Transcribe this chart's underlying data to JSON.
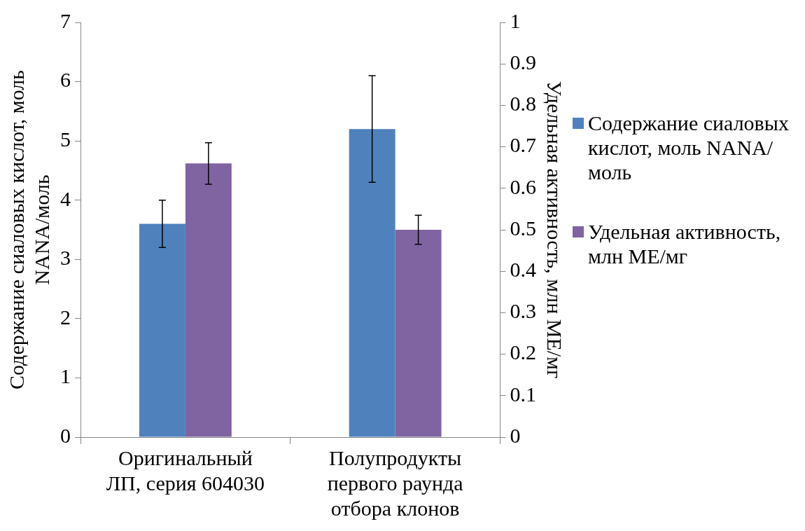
{
  "chart_data": {
    "type": "bar",
    "categories": [
      "Оригинальный ЛП, серия 604030",
      "Полупродукты первого раунда отбора клонов"
    ],
    "ylabel": "Содержание сиаловых кислот, моль NANA/моль",
    "y2label": "Удельная активность, млн МЕ/мг",
    "ylim": [
      0,
      7
    ],
    "yticks": [
      0,
      1,
      2,
      3,
      4,
      5,
      6,
      7
    ],
    "y2lim": [
      0,
      1
    ],
    "y2ticks": [
      0,
      {
        "value": 0.1,
        "label": "0.1"
      },
      {
        "value": 0.2,
        "label": "0.2"
      },
      {
        "value": 0.3,
        "label": "0.3"
      },
      {
        "value": 0.4,
        "label": "0.4"
      },
      {
        "value": 0.5,
        "label": "0.5"
      },
      {
        "value": 0.6,
        "label": "0.6"
      },
      {
        "value": 0.7,
        "label": "0.7"
      },
      {
        "value": 0.8,
        "label": "0.8"
      },
      {
        "value": 0.9,
        "label": "0.9"
      },
      1
    ],
    "grid": false,
    "legend": "right",
    "series": [
      {
        "name": "Содержание сиаловых кислот, моль NANA/моль",
        "color": "#4f81bd",
        "values": [
          3.6,
          5.2
        ],
        "errors": [
          0.4,
          0.9
        ]
      },
      {
        "name": "Удельная активность, млн МЕ/мг",
        "color": "#8064a2",
        "values": [
          0.66,
          0.5
        ],
        "errors": [
          0.05,
          0.035
        ],
        "axis": "y2"
      }
    ]
  }
}
